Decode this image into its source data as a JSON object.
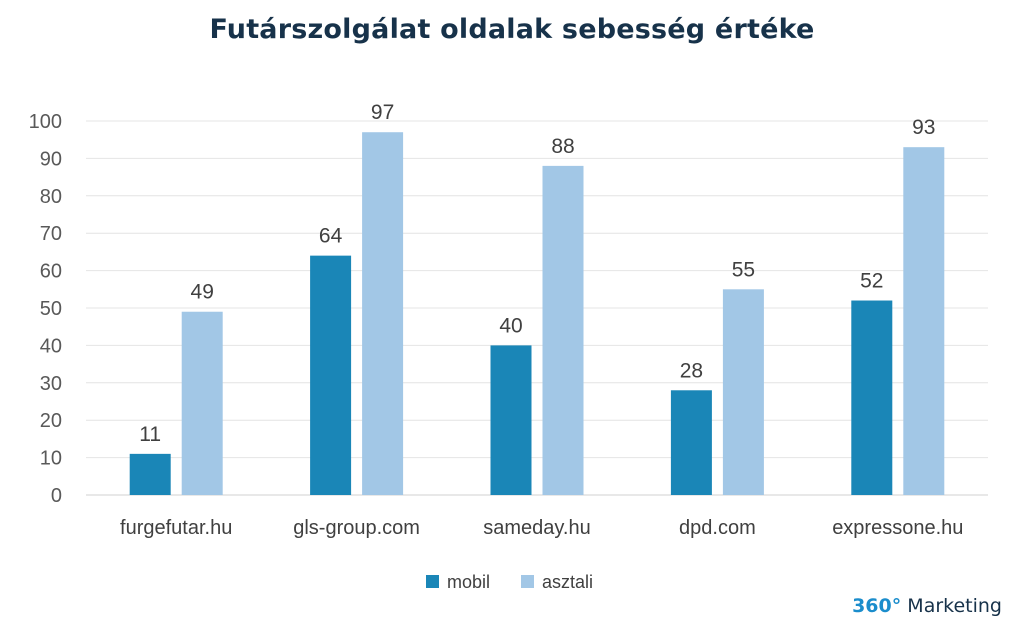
{
  "chart_data": {
    "type": "bar",
    "title": "Futárszolgálat oldalak sebesség értéke",
    "xlabel": "",
    "ylabel": "",
    "ylim": [
      0,
      100
    ],
    "yticks": [
      0,
      10,
      20,
      30,
      40,
      50,
      60,
      70,
      80,
      90,
      100
    ],
    "grid": true,
    "legend_position": "bottom",
    "categories": [
      "furgefutar.hu",
      "gls-group.com",
      "sameday.hu",
      "dpd.com",
      "expressone.hu"
    ],
    "series": [
      {
        "name": "mobil",
        "color": "#1a86b7",
        "values": [
          11,
          64,
          40,
          28,
          52
        ]
      },
      {
        "name": "asztali",
        "color": "#a2c7e6",
        "values": [
          49,
          97,
          88,
          55,
          93
        ]
      }
    ]
  },
  "brand": {
    "number": "360°",
    "text": "Marketing"
  }
}
